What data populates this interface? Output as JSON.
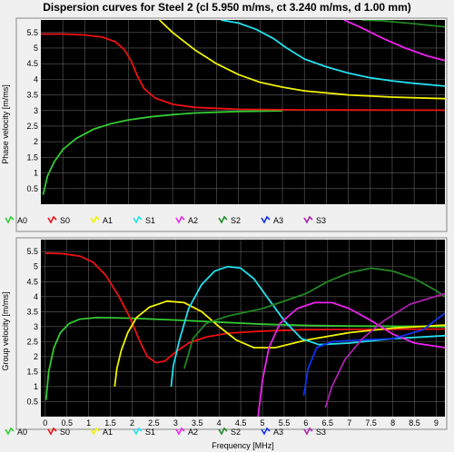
{
  "title": "Dispersion curves for Steel 2 (cl 5.950 m/ms, ct 3.240 m/ms, d 1.00 mm)",
  "colors": {
    "background": "#000000",
    "grid": "#606060",
    "A0": "#33cc33",
    "S0": "#ee1111",
    "A1": "#f2f200",
    "S1": "#22e0ee",
    "A2": "#ee22ee",
    "S2": "#228822",
    "A3": "#1133ee",
    "S3": "#aa22aa"
  },
  "chart_data": [
    {
      "type": "line",
      "name": "phase",
      "title": "",
      "xlabel": "",
      "ylabel": "Phase velocity [m/ms]",
      "xlim": [
        0,
        9.2
      ],
      "ylim": [
        0,
        5.9
      ],
      "xticks": [],
      "yticks": [
        "0.5",
        "1",
        "1.5",
        "2",
        "2.5",
        "3",
        "3.5",
        "4",
        "4.5",
        "5",
        "5.5"
      ],
      "grid": true,
      "legend": {
        "position": "bottom",
        "entries": [
          "A0",
          "S0",
          "A1",
          "S1",
          "A2",
          "S2",
          "A3",
          "S3"
        ]
      },
      "series": [
        {
          "name": "A0",
          "points": [
            [
              0.05,
              0.3
            ],
            [
              0.15,
              0.9
            ],
            [
              0.3,
              1.35
            ],
            [
              0.5,
              1.75
            ],
            [
              0.8,
              2.1
            ],
            [
              1.2,
              2.4
            ],
            [
              1.6,
              2.58
            ],
            [
              2.0,
              2.7
            ],
            [
              2.5,
              2.8
            ],
            [
              3.0,
              2.87
            ],
            [
              3.5,
              2.92
            ],
            [
              4.5,
              2.97
            ],
            [
              5.5,
              2.99
            ]
          ]
        },
        {
          "name": "S0",
          "points": [
            [
              0,
              5.45
            ],
            [
              0.5,
              5.45
            ],
            [
              1.0,
              5.42
            ],
            [
              1.4,
              5.35
            ],
            [
              1.7,
              5.2
            ],
            [
              1.9,
              4.95
            ],
            [
              2.05,
              4.6
            ],
            [
              2.2,
              4.1
            ],
            [
              2.35,
              3.7
            ],
            [
              2.6,
              3.4
            ],
            [
              3.0,
              3.2
            ],
            [
              3.5,
              3.1
            ],
            [
              4.5,
              3.04
            ],
            [
              6.0,
              3.02
            ],
            [
              9.2,
              3.01
            ]
          ]
        },
        {
          "name": "A1",
          "points": [
            [
              2.7,
              5.9
            ],
            [
              3.0,
              5.5
            ],
            [
              3.5,
              4.95
            ],
            [
              4.0,
              4.5
            ],
            [
              4.5,
              4.15
            ],
            [
              5.0,
              3.9
            ],
            [
              5.5,
              3.75
            ],
            [
              6.0,
              3.63
            ],
            [
              7.0,
              3.5
            ],
            [
              8.0,
              3.43
            ],
            [
              9.2,
              3.38
            ]
          ]
        },
        {
          "name": "S1",
          "points": [
            [
              4.1,
              5.9
            ],
            [
              4.5,
              5.8
            ],
            [
              4.9,
              5.6
            ],
            [
              5.3,
              5.3
            ],
            [
              5.6,
              5.0
            ],
            [
              6.0,
              4.65
            ],
            [
              6.5,
              4.4
            ],
            [
              7.0,
              4.2
            ],
            [
              7.5,
              4.05
            ],
            [
              8.0,
              3.95
            ],
            [
              8.5,
              3.87
            ],
            [
              9.2,
              3.78
            ]
          ]
        },
        {
          "name": "A2",
          "points": [
            [
              6.9,
              5.9
            ],
            [
              7.3,
              5.65
            ],
            [
              7.8,
              5.3
            ],
            [
              8.3,
              5.0
            ],
            [
              8.8,
              4.75
            ],
            [
              9.2,
              4.6
            ]
          ]
        },
        {
          "name": "S2",
          "points": [
            [
              7.3,
              5.9
            ],
            [
              7.8,
              5.87
            ],
            [
              8.5,
              5.78
            ],
            [
              9.2,
              5.68
            ]
          ]
        }
      ]
    },
    {
      "type": "line",
      "name": "group",
      "title": "",
      "xlabel": "Frequency [MHz]",
      "ylabel": "Group velocity [m/ms]",
      "xlim": [
        -0.1,
        9.2
      ],
      "ylim": [
        0,
        5.9
      ],
      "xticks": [
        "0",
        "0.5",
        "1",
        "1.5",
        "2",
        "2.5",
        "3",
        "3.5",
        "4",
        "4.5",
        "5",
        "5.5",
        "6",
        "6.5",
        "7",
        "7.5",
        "8",
        "8.5",
        "9"
      ],
      "yticks": [
        "0.5",
        "1",
        "1.5",
        "2",
        "2.5",
        "3",
        "3.5",
        "4",
        "4.5",
        "5",
        "5.5"
      ],
      "grid": true,
      "legend": {
        "position": "bottom",
        "entries": [
          "A0",
          "S0",
          "A1",
          "S1",
          "A2",
          "S2",
          "A3",
          "S3"
        ]
      },
      "series": [
        {
          "name": "A0",
          "points": [
            [
              0.02,
              0.55
            ],
            [
              0.08,
              1.5
            ],
            [
              0.2,
              2.3
            ],
            [
              0.35,
              2.8
            ],
            [
              0.55,
              3.1
            ],
            [
              0.8,
              3.25
            ],
            [
              1.2,
              3.3
            ],
            [
              2.0,
              3.28
            ],
            [
              3.0,
              3.22
            ],
            [
              4.0,
              3.15
            ],
            [
              5.0,
              3.08
            ],
            [
              6.0,
              3.04
            ],
            [
              7.0,
              3.02
            ],
            [
              9.2,
              3.0
            ]
          ]
        },
        {
          "name": "S0",
          "points": [
            [
              0,
              5.45
            ],
            [
              0.4,
              5.43
            ],
            [
              0.8,
              5.35
            ],
            [
              1.1,
              5.15
            ],
            [
              1.4,
              4.7
            ],
            [
              1.7,
              4.0
            ],
            [
              1.95,
              3.3
            ],
            [
              2.15,
              2.6
            ],
            [
              2.35,
              2.0
            ],
            [
              2.55,
              1.8
            ],
            [
              2.75,
              1.85
            ],
            [
              3.0,
              2.15
            ],
            [
              3.3,
              2.45
            ],
            [
              3.7,
              2.65
            ],
            [
              4.2,
              2.78
            ],
            [
              5.0,
              2.85
            ],
            [
              6.0,
              2.9
            ],
            [
              9.2,
              2.92
            ]
          ]
        },
        {
          "name": "A1",
          "points": [
            [
              1.6,
              1.0
            ],
            [
              1.65,
              1.6
            ],
            [
              1.75,
              2.2
            ],
            [
              1.9,
              2.8
            ],
            [
              2.1,
              3.3
            ],
            [
              2.4,
              3.65
            ],
            [
              2.8,
              3.85
            ],
            [
              3.2,
              3.8
            ],
            [
              3.6,
              3.5
            ],
            [
              4.0,
              3.0
            ],
            [
              4.4,
              2.55
            ],
            [
              4.8,
              2.3
            ],
            [
              5.3,
              2.3
            ],
            [
              6.0,
              2.55
            ],
            [
              7.0,
              2.8
            ],
            [
              8.0,
              2.95
            ],
            [
              9.2,
              3.05
            ]
          ]
        },
        {
          "name": "S1",
          "points": [
            [
              2.9,
              1.0
            ],
            [
              2.95,
              1.7
            ],
            [
              3.1,
              2.6
            ],
            [
              3.3,
              3.6
            ],
            [
              3.6,
              4.4
            ],
            [
              3.9,
              4.85
            ],
            [
              4.2,
              5.0
            ],
            [
              4.5,
              4.95
            ],
            [
              4.8,
              4.6
            ],
            [
              5.1,
              4.0
            ],
            [
              5.5,
              3.2
            ],
            [
              5.9,
              2.6
            ],
            [
              6.3,
              2.4
            ],
            [
              7.0,
              2.45
            ],
            [
              8.0,
              2.6
            ],
            [
              9.2,
              2.7
            ]
          ]
        },
        {
          "name": "A2",
          "points": [
            [
              4.9,
              0.0
            ],
            [
              5.0,
              1.2
            ],
            [
              5.15,
              2.3
            ],
            [
              5.4,
              3.1
            ],
            [
              5.8,
              3.6
            ],
            [
              6.2,
              3.8
            ],
            [
              6.6,
              3.8
            ],
            [
              7.0,
              3.6
            ],
            [
              7.5,
              3.2
            ],
            [
              8.0,
              2.75
            ],
            [
              8.5,
              2.45
            ],
            [
              9.2,
              2.3
            ]
          ]
        },
        {
          "name": "S2",
          "points": [
            [
              3.2,
              1.6
            ],
            [
              3.4,
              2.6
            ],
            [
              3.7,
              3.1
            ],
            [
              4.2,
              3.35
            ],
            [
              5.0,
              3.6
            ],
            [
              6.0,
              4.1
            ],
            [
              6.5,
              4.5
            ],
            [
              7.0,
              4.8
            ],
            [
              7.5,
              4.95
            ],
            [
              8.0,
              4.85
            ],
            [
              8.5,
              4.6
            ],
            [
              9.0,
              4.2
            ],
            [
              9.2,
              4.0
            ]
          ]
        },
        {
          "name": "A3",
          "points": [
            [
              5.95,
              0.7
            ],
            [
              6.05,
              1.6
            ],
            [
              6.25,
              2.3
            ],
            [
              6.6,
              2.5
            ],
            [
              7.2,
              2.55
            ],
            [
              8.0,
              2.6
            ],
            [
              8.7,
              2.9
            ],
            [
              9.2,
              3.45
            ]
          ]
        },
        {
          "name": "S3",
          "points": [
            [
              6.45,
              0.3
            ],
            [
              6.6,
              1.0
            ],
            [
              6.9,
              1.9
            ],
            [
              7.3,
              2.6
            ],
            [
              7.8,
              3.2
            ],
            [
              8.4,
              3.75
            ],
            [
              9.2,
              4.1
            ]
          ]
        }
      ]
    }
  ]
}
